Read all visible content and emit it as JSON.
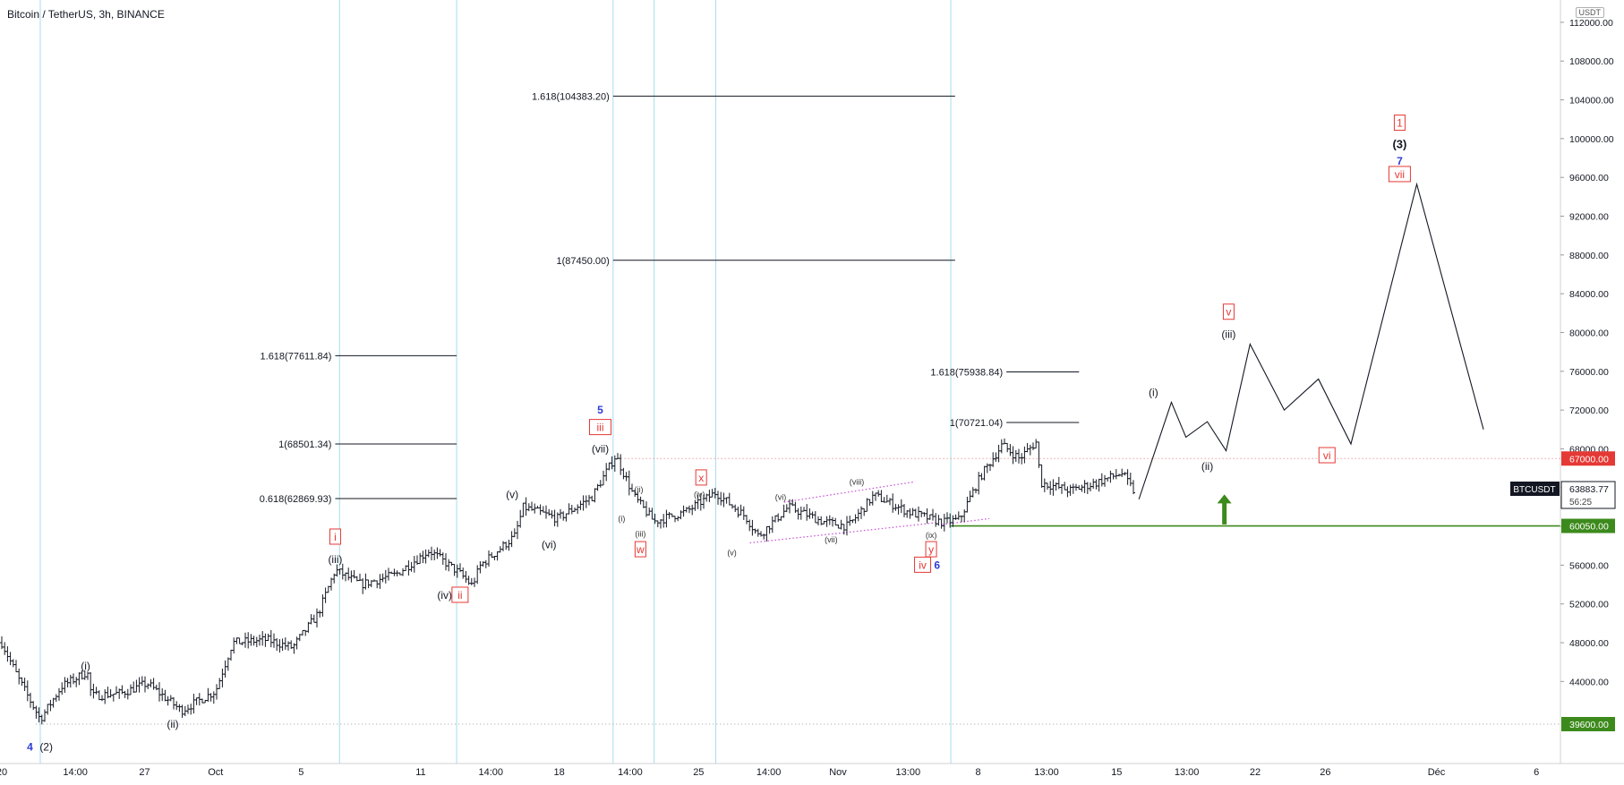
{
  "header": {
    "title": "Bitcoin / TetherUS, 3h, BINANCE",
    "currency": "USDT"
  },
  "colors": {
    "candle": "#131722",
    "vline": "#a7dcec",
    "fib": "#131722",
    "red": "#e53935",
    "blue": "#2c3cd4",
    "green": "#3c8a1c",
    "purple": "#c64bd6",
    "axis_text": "#131722",
    "red_dots": "#e57373",
    "gray_dots": "#9e9e9e"
  },
  "chart_data": {
    "type": "candlestick",
    "x_ticks": [
      {
        "label": "20",
        "t": 0
      },
      {
        "label": "14:00",
        "t": 0.86
      },
      {
        "label": "27",
        "t": 1.67
      },
      {
        "label": "Oct",
        "t": 2.5
      },
      {
        "label": "5",
        "t": 3.5
      },
      {
        "label": "11",
        "t": 4.9
      },
      {
        "label": "14:00",
        "t": 5.72
      },
      {
        "label": "18",
        "t": 6.52
      },
      {
        "label": "14:00",
        "t": 7.35
      },
      {
        "label": "25",
        "t": 8.15
      },
      {
        "label": "14:00",
        "t": 8.97
      },
      {
        "label": "Nov",
        "t": 9.78
      },
      {
        "label": "13:00",
        "t": 10.6
      },
      {
        "label": "8",
        "t": 11.42
      },
      {
        "label": "13:00",
        "t": 12.22
      },
      {
        "label": "15",
        "t": 13.04
      },
      {
        "label": "13:00",
        "t": 13.86
      },
      {
        "label": "22",
        "t": 14.66
      },
      {
        "label": "26",
        "t": 15.48
      },
      {
        "label": "Déc",
        "t": 16.78
      },
      {
        "label": "6",
        "t": 17.95
      }
    ],
    "y_ticks": [
      44000,
      48000,
      52000,
      56000,
      60000,
      64000,
      68000,
      72000,
      76000,
      80000,
      84000,
      88000,
      92000,
      96000,
      100000,
      104000,
      108000,
      112000
    ],
    "y_range": [
      36000,
      113500
    ],
    "price_labels": [
      {
        "text": "67000.00",
        "value": 67000,
        "style": "red"
      },
      {
        "text": "60050.00",
        "value": 60050,
        "style": "green"
      },
      {
        "text": "39600.00",
        "value": 39600,
        "style": "green"
      }
    ],
    "current_price": {
      "symbol": "BTCUSDT",
      "price": "63883.77",
      "countdown": "56:25",
      "value": 63883.77
    },
    "horizontal_levels": [
      {
        "value": 67000,
        "t_start": 7.2,
        "t_end": 18.5,
        "style": "red-dotted"
      },
      {
        "value": 39600,
        "t_start": 0.4,
        "t_end": 18.5,
        "style": "gray-dotted"
      },
      {
        "value": 60050,
        "t_start": 11.1,
        "t_end": 18.5,
        "style": "green-solid"
      }
    ],
    "vertical_lines": [
      0.45,
      3.95,
      5.32,
      7.15,
      7.63,
      8.35,
      11.1
    ],
    "fib_levels": [
      {
        "label": "1.618(77611.84)",
        "value": 77611.84,
        "t_start": 3.9,
        "t_end": 5.32
      },
      {
        "label": "1(68501.34)",
        "value": 68501.34,
        "t_start": 3.9,
        "t_end": 5.32
      },
      {
        "label": "0.618(62869.93)",
        "value": 62869.93,
        "t_start": 3.9,
        "t_end": 5.32
      },
      {
        "label": "1.618(104383.20)",
        "value": 104383.2,
        "t_start": 7.15,
        "t_end": 11.15
      },
      {
        "label": "1(87450.00)",
        "value": 87450,
        "t_start": 7.15,
        "t_end": 11.15
      },
      {
        "label": "1.618(75938.84)",
        "value": 75938.84,
        "t_start": 11.75,
        "t_end": 12.6
      },
      {
        "label": "1(70721.04)",
        "value": 70721.04,
        "t_start": 11.75,
        "t_end": 12.6
      }
    ],
    "price_path": [
      [
        0,
        48000
      ],
      [
        0.2,
        44200
      ],
      [
        0.45,
        40100
      ],
      [
        0.7,
        43500
      ],
      [
        1.0,
        45000
      ],
      [
        1.05,
        42500
      ],
      [
        1.4,
        42800
      ],
      [
        1.7,
        43800
      ],
      [
        2.1,
        41000
      ],
      [
        2.5,
        43000
      ],
      [
        2.7,
        48000
      ],
      [
        3.1,
        48300
      ],
      [
        3.4,
        47500
      ],
      [
        3.7,
        51000
      ],
      [
        3.9,
        55500
      ],
      [
        4.2,
        54000
      ],
      [
        4.6,
        55000
      ],
      [
        5.0,
        57500
      ],
      [
        5.35,
        55200
      ],
      [
        5.5,
        53900
      ],
      [
        5.6,
        56000
      ],
      [
        6.0,
        59000
      ],
      [
        6.1,
        62000
      ],
      [
        6.5,
        60800
      ],
      [
        6.9,
        63000
      ],
      [
        7.18,
        67300
      ],
      [
        7.4,
        63000
      ],
      [
        7.63,
        60500
      ],
      [
        8.0,
        61500
      ],
      [
        8.35,
        63500
      ],
      [
        8.7,
        61000
      ],
      [
        8.85,
        59000
      ],
      [
        9.2,
        62000
      ],
      [
        9.6,
        60500
      ],
      [
        9.9,
        60000
      ],
      [
        10.2,
        63200
      ],
      [
        10.6,
        61500
      ],
      [
        11.0,
        60400
      ],
      [
        11.2,
        60700
      ],
      [
        11.45,
        65200
      ],
      [
        11.7,
        68400
      ],
      [
        11.9,
        67000
      ],
      [
        12.1,
        68700
      ],
      [
        12.15,
        64500
      ],
      [
        12.5,
        63700
      ],
      [
        12.8,
        64500
      ],
      [
        13.1,
        65500
      ],
      [
        13.25,
        63500
      ]
    ],
    "projection_path": [
      [
        13.3,
        62800
      ],
      [
        13.68,
        72800
      ],
      [
        13.85,
        69200
      ],
      [
        14.1,
        70800
      ],
      [
        14.32,
        67800
      ],
      [
        14.6,
        78800
      ],
      [
        15.0,
        72000
      ],
      [
        15.4,
        75200
      ],
      [
        15.78,
        68500
      ],
      [
        16.55,
        95300
      ],
      [
        17.33,
        70000
      ]
    ],
    "wave_channel": [
      {
        "t1": 8.75,
        "v1": 58300,
        "t2": 10.95,
        "v2": 60400
      },
      {
        "t1": 9.15,
        "v1": 62500,
        "t2": 10.68,
        "v2": 64600
      },
      {
        "t1": 11.0,
        "v1": 60200,
        "t2": 11.55,
        "v2": 60800
      }
    ],
    "green_arrow": {
      "t": 14.3,
      "base": 60200,
      "tip": 63300
    },
    "wave_labels": [
      {
        "text": "4",
        "t": 0.33,
        "v": 37250,
        "style": "blue"
      },
      {
        "text": "(2)",
        "t": 0.52,
        "v": 37250,
        "style": "black"
      },
      {
        "text": "(i)",
        "t": 0.98,
        "v": 45600,
        "style": "black"
      },
      {
        "text": "(ii)",
        "t": 2.0,
        "v": 39600,
        "style": "black"
      },
      {
        "text": "i",
        "t": 3.9,
        "v": 58900,
        "style": "red-box"
      },
      {
        "text": "(iii)",
        "t": 3.9,
        "v": 56600,
        "style": "black"
      },
      {
        "text": "(iv)",
        "t": 5.18,
        "v": 52900,
        "style": "black"
      },
      {
        "text": "ii",
        "t": 5.36,
        "v": 52900,
        "style": "red-box"
      },
      {
        "text": "(v)",
        "t": 5.97,
        "v": 63300,
        "style": "black"
      },
      {
        "text": "(vi)",
        "t": 6.4,
        "v": 58100,
        "style": "black"
      },
      {
        "text": "5",
        "t": 7.0,
        "v": 72000,
        "style": "blue"
      },
      {
        "text": "iii",
        "t": 7.0,
        "v": 70200,
        "style": "red-box"
      },
      {
        "text": "(vii)",
        "t": 7.0,
        "v": 68000,
        "style": "black"
      },
      {
        "text": "(ii)",
        "t": 7.45,
        "v": 63800,
        "style": "small"
      },
      {
        "text": "(i)",
        "t": 7.25,
        "v": 60800,
        "style": "small"
      },
      {
        "text": "(iii)",
        "t": 7.47,
        "v": 59200,
        "style": "small"
      },
      {
        "text": "w",
        "t": 7.47,
        "v": 57600,
        "style": "red-box"
      },
      {
        "text": "x",
        "t": 8.18,
        "v": 65000,
        "style": "red-box"
      },
      {
        "text": "(iv)",
        "t": 8.16,
        "v": 63300,
        "style": "small"
      },
      {
        "text": "(v)",
        "t": 8.54,
        "v": 57300,
        "style": "small"
      },
      {
        "text": "(vi)",
        "t": 9.11,
        "v": 63000,
        "style": "small"
      },
      {
        "text": "(vii)",
        "t": 9.7,
        "v": 58600,
        "style": "small"
      },
      {
        "text": "(viii)",
        "t": 10.0,
        "v": 64600,
        "style": "small"
      },
      {
        "text": "(ix)",
        "t": 10.87,
        "v": 59100,
        "style": "small"
      },
      {
        "text": "y",
        "t": 10.87,
        "v": 57600,
        "style": "red-box"
      },
      {
        "text": "iv",
        "t": 10.77,
        "v": 56000,
        "style": "red-box"
      },
      {
        "text": "6",
        "t": 10.94,
        "v": 56000,
        "style": "blue"
      },
      {
        "text": "(i)",
        "t": 13.47,
        "v": 73800,
        "style": "black"
      },
      {
        "text": "(ii)",
        "t": 14.1,
        "v": 66200,
        "style": "black"
      },
      {
        "text": "v",
        "t": 14.35,
        "v": 82100,
        "style": "red-box"
      },
      {
        "text": "(iii)",
        "t": 14.35,
        "v": 79800,
        "style": "black"
      },
      {
        "text": "vi",
        "t": 15.5,
        "v": 67300,
        "style": "red-box"
      },
      {
        "text": "1",
        "t": 16.35,
        "v": 101600,
        "style": "red-box"
      },
      {
        "text": "(3)",
        "t": 16.35,
        "v": 99400,
        "style": "black-bold"
      },
      {
        "text": "7",
        "t": 16.35,
        "v": 97700,
        "style": "blue"
      },
      {
        "text": "vii",
        "t": 16.35,
        "v": 96300,
        "style": "red-box"
      }
    ]
  }
}
